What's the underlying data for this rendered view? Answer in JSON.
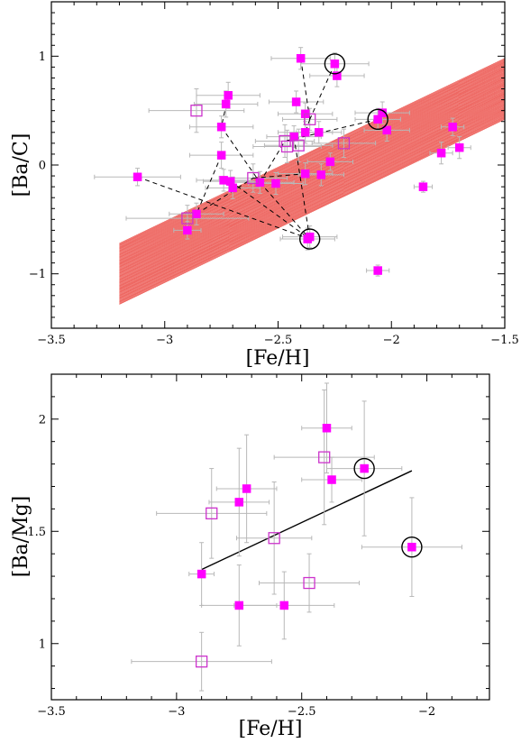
{
  "chart_data": [
    {
      "type": "scatter",
      "xlabel": "[Fe/H]",
      "ylabel": "[Ba/C]",
      "xlim": [
        -3.5,
        -1.5
      ],
      "ylim": [
        -1.5,
        1.5
      ],
      "xticks": [
        -3.5,
        -3,
        -2.5,
        -2,
        -1.5
      ],
      "xtick_labels": [
        "−3.5",
        "−3",
        "−2.5",
        "−2",
        "−1.5"
      ],
      "yticks": [
        -1,
        0,
        1
      ],
      "ytick_labels": [
        "−1",
        "0",
        "1"
      ],
      "band": {
        "color": "#e8322a",
        "x": [
          -3.2,
          -1.5
        ],
        "lower": [
          -1.28,
          0.42
        ],
        "upper": [
          -0.72,
          0.98
        ]
      },
      "filled_color": "#ff00ff",
      "open_color": "#cc33cc",
      "series": [
        {
          "marker": "filled-square",
          "points": [
            {
              "x": -2.4,
              "y": 0.98,
              "xerr": 0.13,
              "yerr": 0.1
            },
            {
              "x": -2.25,
              "y": 0.93,
              "xerr": 0.15,
              "yerr": 0.1
            },
            {
              "x": -2.24,
              "y": 0.82,
              "xerr": 0.12,
              "yerr": 0.1
            },
            {
              "x": -2.72,
              "y": 0.64,
              "xerr": 0.14,
              "yerr": 0.12
            },
            {
              "x": -2.73,
              "y": 0.56,
              "xerr": 0.14,
              "yerr": 0.12
            },
            {
              "x": -2.42,
              "y": 0.58,
              "xerr": 0.12,
              "yerr": 0.1
            },
            {
              "x": -2.38,
              "y": 0.47,
              "xerr": 0.12,
              "yerr": 0.1
            },
            {
              "x": -2.04,
              "y": 0.48,
              "xerr": 0.12,
              "yerr": 0.1
            },
            {
              "x": -2.06,
              "y": 0.42,
              "xerr": 0.1,
              "yerr": 0.1
            },
            {
              "x": -2.02,
              "y": 0.32,
              "xerr": 0.1,
              "yerr": 0.1
            },
            {
              "x": -1.73,
              "y": 0.35,
              "xerr": 0.05,
              "yerr": 0.08
            },
            {
              "x": -2.75,
              "y": 0.35,
              "xerr": 0.14,
              "yerr": 0.1
            },
            {
              "x": -2.32,
              "y": 0.3,
              "xerr": 0.1,
              "yerr": 0.1
            },
            {
              "x": -2.38,
              "y": 0.3,
              "xerr": 0.12,
              "yerr": 0.1
            },
            {
              "x": -2.43,
              "y": 0.26,
              "xerr": 0.12,
              "yerr": 0.1
            },
            {
              "x": -1.7,
              "y": 0.16,
              "xerr": 0.05,
              "yerr": 0.1
            },
            {
              "x": -1.78,
              "y": 0.11,
              "xerr": 0.05,
              "yerr": 0.1
            },
            {
              "x": -2.75,
              "y": 0.09,
              "xerr": 0.14,
              "yerr": 0.12
            },
            {
              "x": -2.27,
              "y": 0.03,
              "xerr": 0.1,
              "yerr": 0.08
            },
            {
              "x": -2.38,
              "y": -0.08,
              "xerr": 0.12,
              "yerr": 0.1
            },
            {
              "x": -2.31,
              "y": -0.09,
              "xerr": 0.1,
              "yerr": 0.1
            },
            {
              "x": -3.12,
              "y": -0.11,
              "xerr": 0.19,
              "yerr": 0.08
            },
            {
              "x": -2.74,
              "y": -0.14,
              "xerr": 0.12,
              "yerr": 0.1
            },
            {
              "x": -2.71,
              "y": -0.15,
              "xerr": 0.12,
              "yerr": 0.1
            },
            {
              "x": -2.58,
              "y": -0.16,
              "xerr": 0.15,
              "yerr": 0.1
            },
            {
              "x": -2.51,
              "y": -0.17,
              "xerr": 0.12,
              "yerr": 0.1
            },
            {
              "x": -2.7,
              "y": -0.21,
              "xerr": 0.12,
              "yerr": 0.1
            },
            {
              "x": -1.86,
              "y": -0.2,
              "xerr": 0.04,
              "yerr": 0.05
            },
            {
              "x": -2.86,
              "y": -0.45,
              "xerr": 0.12,
              "yerr": 0.1
            },
            {
              "x": -2.9,
              "y": -0.6,
              "xerr": 0.06,
              "yerr": 0.08
            },
            {
              "x": -2.36,
              "y": -0.66,
              "xerr": 0.12,
              "yerr": 0.1
            },
            {
              "x": -2.37,
              "y": -0.68,
              "xerr": 0.12,
              "yerr": 0.1
            },
            {
              "x": -2.06,
              "y": -0.97,
              "xerr": 0.05,
              "yerr": 0.05
            }
          ]
        },
        {
          "marker": "open-square",
          "points": [
            {
              "x": -2.86,
              "y": 0.5,
              "xerr": 0.21,
              "yerr": 0.2
            },
            {
              "x": -2.36,
              "y": 0.42,
              "xerr": 0.12,
              "yerr": 0.1
            },
            {
              "x": -2.47,
              "y": 0.22,
              "xerr": 0.13,
              "yerr": 0.15
            },
            {
              "x": -2.41,
              "y": 0.18,
              "xerr": 0.15,
              "yerr": 0.15
            },
            {
              "x": -2.46,
              "y": 0.17,
              "xerr": 0.15,
              "yerr": 0.15
            },
            {
              "x": -2.21,
              "y": 0.2,
              "xerr": 0.14,
              "yerr": 0.13
            },
            {
              "x": -2.61,
              "y": -0.12,
              "xerr": 0.15,
              "yerr": 0.13
            },
            {
              "x": -2.9,
              "y": -0.49,
              "xerr": 0.27,
              "yerr": 0.12
            }
          ]
        }
      ],
      "circled": [
        {
          "x": -2.25,
          "y": 0.93
        },
        {
          "x": -2.06,
          "y": 0.42
        },
        {
          "x": -2.36,
          "y": -0.68
        }
      ],
      "dashed_connections": [
        [
          [
            -2.4,
            0.98
          ],
          [
            -2.36,
            0.42
          ]
        ],
        [
          [
            -2.25,
            0.93
          ],
          [
            -2.36,
            0.42
          ]
        ],
        [
          [
            -2.36,
            0.42
          ],
          [
            -2.38,
            0.3
          ]
        ],
        [
          [
            -2.06,
            0.42
          ],
          [
            -2.47,
            0.22
          ]
        ],
        [
          [
            -2.72,
            0.64
          ],
          [
            -2.75,
            0.35
          ]
        ],
        [
          [
            -2.75,
            0.35
          ],
          [
            -2.58,
            -0.16
          ]
        ],
        [
          [
            -2.58,
            -0.16
          ],
          [
            -2.36,
            -0.68
          ]
        ],
        [
          [
            -2.71,
            -0.15
          ],
          [
            -2.36,
            -0.68
          ]
        ],
        [
          [
            -2.75,
            0.09
          ],
          [
            -2.86,
            -0.45
          ]
        ],
        [
          [
            -2.86,
            -0.45
          ],
          [
            -2.61,
            -0.12
          ]
        ],
        [
          [
            -3.12,
            -0.11
          ],
          [
            -2.36,
            -0.68
          ]
        ],
        [
          [
            -2.61,
            -0.12
          ],
          [
            -2.38,
            -0.08
          ]
        ],
        [
          [
            -2.43,
            0.26
          ],
          [
            -2.36,
            -0.68
          ]
        ],
        [
          [
            -2.58,
            -0.16
          ],
          [
            -2.47,
            0.22
          ]
        ]
      ]
    },
    {
      "type": "scatter",
      "xlabel": "[Fe/H]",
      "ylabel": "[Ba/Mg]",
      "xlim": [
        -3.5,
        -1.75
      ],
      "ylim": [
        0.75,
        2.2
      ],
      "xticks": [
        -3.5,
        -3,
        -2.5,
        -2
      ],
      "xtick_labels": [
        "−3.5",
        "−3",
        "−2.5",
        "−2"
      ],
      "yticks": [
        1,
        1.5,
        2
      ],
      "ytick_labels": [
        "1",
        "1.5",
        "2"
      ],
      "filled_color": "#ff00ff",
      "open_color": "#cc33cc",
      "series": [
        {
          "marker": "filled-square",
          "points": [
            {
              "x": -2.4,
              "y": 1.96,
              "xerr": 0.1,
              "yerr": 0.2
            },
            {
              "x": -2.25,
              "y": 1.78,
              "xerr": 0.15,
              "yerr": 0.3
            },
            {
              "x": -2.38,
              "y": 1.73,
              "xerr": 0.12,
              "yerr": 0.1
            },
            {
              "x": -2.72,
              "y": 1.69,
              "xerr": 0.12,
              "yerr": 0.24
            },
            {
              "x": -2.75,
              "y": 1.63,
              "xerr": 0.12,
              "yerr": 0.24
            },
            {
              "x": -2.9,
              "y": 1.31,
              "xerr": 0.05,
              "yerr": 0.14
            },
            {
              "x": -2.75,
              "y": 1.17,
              "xerr": 0.15,
              "yerr": 0.18
            },
            {
              "x": -2.57,
              "y": 1.17,
              "xerr": 0.2,
              "yerr": 0.15
            },
            {
              "x": -2.06,
              "y": 1.43,
              "xerr": 0.2,
              "yerr": 0.22
            }
          ]
        },
        {
          "marker": "open-square",
          "points": [
            {
              "x": -2.41,
              "y": 1.83,
              "xerr": 0.2,
              "yerr": 0.3
            },
            {
              "x": -2.86,
              "y": 1.58,
              "xerr": 0.22,
              "yerr": 0.2
            },
            {
              "x": -2.61,
              "y": 1.47,
              "xerr": 0.15,
              "yerr": 0.25
            },
            {
              "x": -2.47,
              "y": 1.27,
              "xerr": 0.2,
              "yerr": 0.13
            },
            {
              "x": -2.9,
              "y": 0.92,
              "xerr": 0.28,
              "yerr": 0.13
            }
          ]
        }
      ],
      "circled": [
        {
          "x": -2.25,
          "y": 1.78
        },
        {
          "x": -2.06,
          "y": 1.43
        }
      ],
      "fit_line": {
        "x": [
          -2.9,
          -2.06
        ],
        "y": [
          1.33,
          1.77
        ]
      }
    }
  ]
}
